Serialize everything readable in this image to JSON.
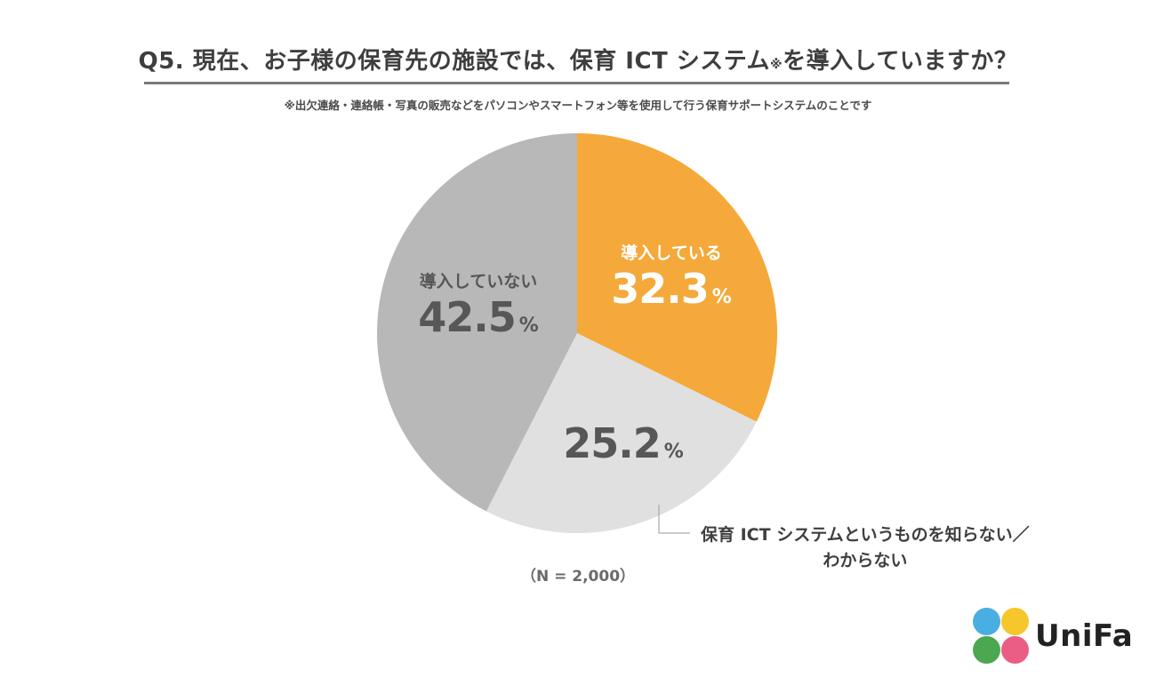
{
  "header": {
    "title": "Q5. 現在、お子様の保育先の施設では、保育 ICT システム",
    "title_mark": "※",
    "title_end": "を導入していますか？",
    "note": "※出欠連絡・連絡帳・写真の販売などをパソコンやスマートフォン等を使用して行う保育サポートシステムのことです"
  },
  "chart_data": {
    "type": "pie",
    "unit": "%",
    "sample_label": "（N = 2,000）",
    "slices": [
      {
        "label": "導入している",
        "value": 32.3,
        "color": "#f4a93a",
        "value_text": "32.3",
        "label_color": "#ffffff"
      },
      {
        "label": "保育 ICT システムというものを知らない／わからない",
        "label_line1": "保育 ICT システムというものを知らない／",
        "label_line2": "わからない",
        "value": 25.2,
        "color": "#e0e0e0",
        "value_text": "25.2",
        "label_color": "#575757"
      },
      {
        "label": "導入していない",
        "value": 42.5,
        "color": "#b8b8b8",
        "value_text": "42.5",
        "label_color": "#575757"
      }
    ]
  },
  "brand": {
    "name": "UniFa",
    "dot_colors": [
      "#3aa7df",
      "#f5c21a",
      "#3da042",
      "#e8507a"
    ]
  }
}
